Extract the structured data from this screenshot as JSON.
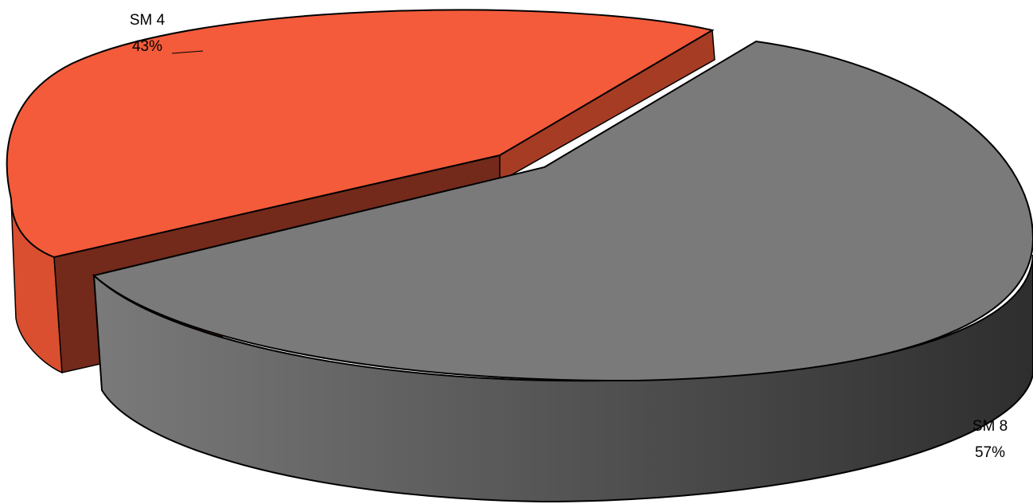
{
  "chart_data": {
    "type": "pie",
    "style": "3d-exploded",
    "slices": [
      {
        "label": "SM 4",
        "percent_label": "43%",
        "value": 43,
        "color": "#f35b3b"
      },
      {
        "label": "SM 8",
        "percent_label": "57%",
        "value": 57,
        "color": "#7a7a7a"
      }
    ],
    "legend": "none"
  }
}
